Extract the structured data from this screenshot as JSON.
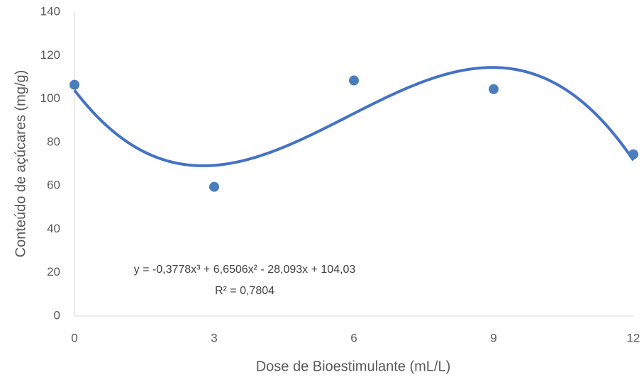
{
  "chart_data": {
    "type": "scatter",
    "x_label": "Dose de Bioestimulante (mL/L)",
    "y_label": "Conteúdo de açúcares (mg/g)",
    "x": [
      0,
      3,
      6,
      9,
      12
    ],
    "series": [
      {
        "color": "#4a7ebb",
        "values": [
          106.5,
          59.5,
          108.5,
          104.5,
          74.5
        ]
      }
    ],
    "xlim": [
      0,
      12
    ],
    "xticks": [
      0,
      3,
      6,
      9,
      12
    ],
    "ylim": [
      0,
      140
    ],
    "yticks": [
      0,
      20,
      40,
      60,
      80,
      100,
      120,
      140
    ],
    "grid": false,
    "trendline": {
      "type": "polynomial",
      "color": "#4472c4",
      "coefficients": [
        104.03,
        -28.093,
        6.6506,
        -0.3778
      ],
      "equation": "y = -0,3778x³ + 6,6506x² - 28,093x + 104,03",
      "r_squared": 0.7804,
      "r_squared_label": "R² = 0,7804"
    }
  }
}
